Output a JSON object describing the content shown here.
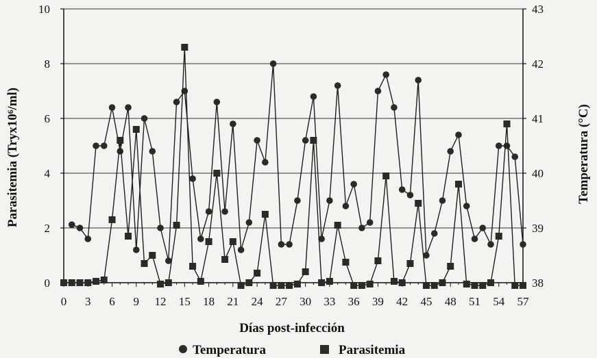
{
  "chart_data": {
    "type": "line",
    "xlabel": "Días post-infección",
    "ylabel_left": "Parasitemia (Tryx10⁶/ml)",
    "ylabel_right": "Temperatura (°C)",
    "x_ticks": [
      0,
      3,
      6,
      9,
      12,
      15,
      18,
      21,
      24,
      27,
      30,
      33,
      36,
      39,
      42,
      45,
      48,
      51,
      54,
      57
    ],
    "y_left": {
      "lim": [
        0,
        10
      ],
      "ticks": [
        0,
        2,
        4,
        6,
        8,
        10
      ]
    },
    "y_right": {
      "lim": [
        38,
        43
      ],
      "ticks": [
        38,
        39,
        40,
        41,
        42,
        43
      ]
    },
    "grid": "horizontal",
    "legend": "bottom",
    "series": [
      {
        "name": "Temperatura",
        "axis": "right",
        "marker": "circle",
        "x": [
          1,
          2,
          3,
          4,
          5,
          6,
          7,
          8,
          9,
          10,
          11,
          12,
          13,
          14,
          15,
          16,
          17,
          18,
          19,
          20,
          21,
          22,
          23,
          24,
          25,
          26,
          27,
          28,
          29,
          30,
          31,
          32,
          33,
          34,
          35,
          36,
          37,
          38,
          39,
          40,
          41,
          42,
          43,
          44,
          45,
          46,
          47,
          48,
          49,
          50,
          51,
          52,
          53,
          54,
          55,
          56,
          57
        ],
        "values": [
          39.06,
          39.0,
          38.8,
          40.5,
          40.5,
          41.2,
          40.4,
          41.2,
          38.6,
          41.0,
          40.4,
          39.0,
          38.4,
          41.3,
          41.5,
          39.9,
          38.8,
          39.3,
          41.3,
          39.3,
          40.9,
          38.6,
          39.1,
          40.6,
          40.2,
          42.0,
          38.7,
          38.7,
          39.5,
          40.6,
          41.4,
          38.8,
          39.5,
          41.6,
          39.4,
          39.8,
          39.0,
          39.1,
          41.5,
          41.8,
          41.2,
          39.7,
          39.6,
          41.7,
          38.5,
          38.9,
          39.5,
          40.4,
          40.7,
          39.4,
          38.8,
          39.0,
          38.7,
          40.5,
          40.5,
          40.3,
          38.7
        ]
      },
      {
        "name": "Parasitemia",
        "axis": "left",
        "marker": "square",
        "x": [
          0,
          1,
          2,
          3,
          4,
          5,
          6,
          7,
          8,
          9,
          10,
          11,
          12,
          13,
          14,
          15,
          16,
          17,
          18,
          19,
          20,
          21,
          22,
          23,
          24,
          25,
          26,
          27,
          28,
          29,
          30,
          31,
          32,
          33,
          34,
          35,
          36,
          37,
          38,
          39,
          40,
          41,
          42,
          43,
          44,
          45,
          46,
          47,
          48,
          49,
          50,
          51,
          52,
          53,
          54,
          55,
          56,
          57
        ],
        "values": [
          0,
          0,
          0,
          0,
          0.05,
          0.1,
          2.3,
          5.2,
          1.7,
          5.6,
          0.7,
          1.0,
          -0.05,
          0,
          2.1,
          8.6,
          0.6,
          0.05,
          1.5,
          4.0,
          0.85,
          1.5,
          -0.1,
          0,
          0.35,
          2.5,
          -0.1,
          -0.1,
          -0.1,
          -0.05,
          0.4,
          5.2,
          0,
          0.05,
          2.1,
          0.75,
          -0.1,
          -0.1,
          -0.05,
          0.8,
          3.9,
          0.05,
          0,
          0.7,
          2.9,
          -0.1,
          -0.1,
          0,
          0.6,
          3.6,
          -0.05,
          -0.1,
          -0.1,
          0,
          1.7,
          5.8,
          -0.1,
          -0.1
        ]
      }
    ]
  }
}
